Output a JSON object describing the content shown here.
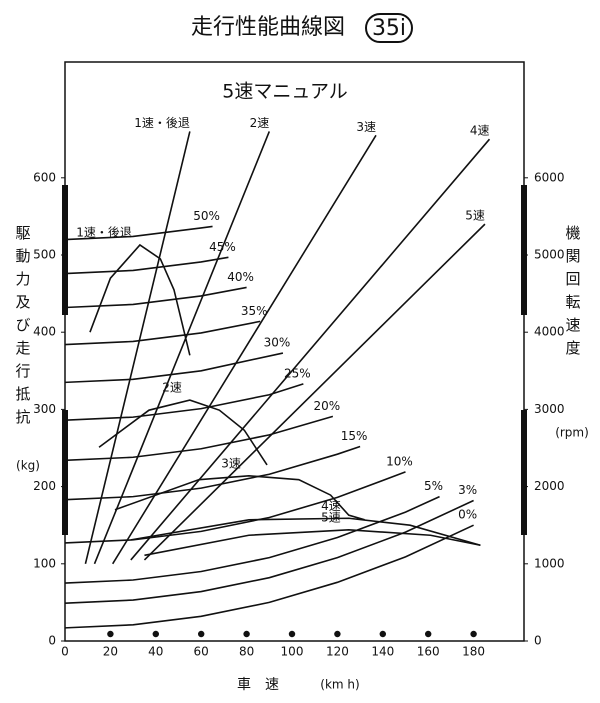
{
  "chart_data": {
    "type": "line",
    "title": "走行性能曲線図",
    "badge": "35i",
    "subtitle": "5速マニュアル",
    "ylabel": "駆動力及び走行抵抗",
    "yunit": "(kg)",
    "y2label": "機関回転速度",
    "y2unit": "(rpm)",
    "xlabel": "車　速",
    "xunit": "(km h)",
    "color": "#111111",
    "xlim": [
      0,
      200
    ],
    "xticks": [
      0,
      20,
      40,
      60,
      80,
      100,
      120,
      140,
      160,
      180
    ],
    "ylim": [
      0,
      750
    ],
    "yticks": [
      0,
      100,
      200,
      300,
      400,
      500,
      600
    ],
    "y2lim": [
      0,
      7500
    ],
    "y2ticks": [
      0,
      1000,
      2000,
      3000,
      4000,
      5000,
      6000
    ],
    "gear_speed_lines": [
      {
        "name": "1速・後退",
        "axis": "y2",
        "x": [
          9,
          55
        ],
        "values": [
          1000,
          6600
        ]
      },
      {
        "name": "2速",
        "axis": "y2",
        "x": [
          13,
          90
        ],
        "values": [
          1000,
          6600
        ]
      },
      {
        "name": "3速",
        "axis": "y2",
        "x": [
          21,
          137
        ],
        "values": [
          1000,
          6550
        ]
      },
      {
        "name": "4速",
        "axis": "y2",
        "x": [
          29,
          187
        ],
        "values": [
          1050,
          6500
        ]
      },
      {
        "name": "5速",
        "axis": "y2",
        "x": [
          35,
          185
        ],
        "values": [
          1050,
          5400
        ]
      }
    ],
    "driving_force": [
      {
        "name": "1速・後退",
        "x": [
          11,
          20,
          33,
          42,
          48,
          55
        ],
        "values": [
          400,
          470,
          513,
          495,
          455,
          370
        ]
      },
      {
        "name": "2速",
        "x": [
          15,
          37,
          55,
          68,
          79,
          89
        ],
        "values": [
          251,
          299,
          312,
          299,
          273,
          228
        ]
      },
      {
        "name": "3速",
        "x": [
          22,
          59,
          81,
          103,
          117,
          125,
          132
        ],
        "values": [
          170,
          209,
          214,
          209,
          189,
          163,
          157
        ]
      },
      {
        "name": "4速",
        "x": [
          29,
          81,
          125,
          152,
          183
        ],
        "values": [
          131,
          157,
          159,
          150,
          124
        ]
      },
      {
        "name": "5速",
        "x": [
          35,
          81,
          125,
          161,
          183
        ],
        "values": [
          111,
          137,
          144,
          137,
          124
        ]
      }
    ],
    "running_resistance": [
      {
        "name": "0%",
        "x": [
          0,
          30,
          60,
          90,
          120,
          150,
          180
        ],
        "values": [
          17,
          21,
          32,
          50,
          76,
          109,
          150
        ]
      },
      {
        "name": "3%",
        "x": [
          0,
          30,
          60,
          90,
          120,
          150,
          180
        ],
        "values": [
          49,
          53,
          64,
          82,
          108,
          141,
          182
        ]
      },
      {
        "name": "5%",
        "x": [
          0,
          30,
          60,
          90,
          120,
          150,
          165
        ],
        "values": [
          75,
          79,
          90,
          108,
          134,
          167,
          187
        ]
      },
      {
        "name": "10%",
        "x": [
          0,
          30,
          60,
          90,
          120,
          150
        ],
        "values": [
          127,
          131,
          142,
          160,
          186,
          219
        ]
      },
      {
        "name": "15%",
        "x": [
          0,
          30,
          60,
          90,
          120,
          130
        ],
        "values": [
          183,
          187,
          198,
          216,
          242,
          252
        ]
      },
      {
        "name": "20%",
        "x": [
          0,
          30,
          60,
          90,
          118
        ],
        "values": [
          234,
          238,
          249,
          267,
          291
        ]
      },
      {
        "name": "25%",
        "x": [
          0,
          30,
          60,
          90,
          105
        ],
        "values": [
          286,
          290,
          301,
          319,
          333
        ]
      },
      {
        "name": "30%",
        "x": [
          0,
          30,
          60,
          96
        ],
        "values": [
          335,
          339,
          350,
          373
        ]
      },
      {
        "name": "35%",
        "x": [
          0,
          30,
          60,
          86
        ],
        "values": [
          384,
          388,
          399,
          414
        ]
      },
      {
        "name": "40%",
        "x": [
          0,
          30,
          60,
          80
        ],
        "values": [
          432,
          436,
          447,
          458
        ]
      },
      {
        "name": "45%",
        "x": [
          0,
          30,
          60,
          72
        ],
        "values": [
          476,
          480,
          491,
          497
        ]
      },
      {
        "name": "50%",
        "x": [
          0,
          30,
          60,
          65
        ],
        "values": [
          520,
          524,
          535,
          537
        ]
      }
    ]
  }
}
